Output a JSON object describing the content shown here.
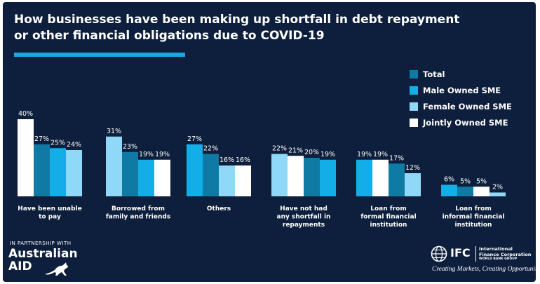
{
  "title": {
    "line1": "How businesses have been making up shortfall in debt repayment",
    "line2": "or other financial obligations due to COVID-19"
  },
  "colors": {
    "background": "#0d1f3c",
    "accent": "#1aa7e0",
    "total": "#0f7aa3",
    "male": "#13aee8",
    "female": "#8fd8f7",
    "jointly": "#ffffff"
  },
  "chart_data": {
    "type": "bar",
    "categories": [
      [
        "Have been unable",
        "to pay"
      ],
      [
        "Borrowed from",
        "family and friends"
      ],
      [
        "Others"
      ],
      [
        "Have not had",
        "any shortfall in",
        "repayments"
      ],
      [
        "Loan from",
        "formal financial",
        "institution"
      ],
      [
        "Loan from",
        "informal financial",
        "institution"
      ]
    ],
    "category_labels": [
      "Have been unable to pay",
      "Borrowed from family and friends",
      "Others",
      "Have not had any shortfall in repayments",
      "Loan from formal financial institution",
      "Loan from informal financial institution"
    ],
    "groups": [
      [
        {
          "series": "Jointly Owned SME",
          "value": 40
        },
        {
          "series": "Total",
          "value": 27
        },
        {
          "series": "Male Owned SME",
          "value": 25
        },
        {
          "series": "Female Owned SME",
          "value": 24
        }
      ],
      [
        {
          "series": "Female Owned SME",
          "value": 31
        },
        {
          "series": "Total",
          "value": 23
        },
        {
          "series": "Male Owned SME",
          "value": 19
        },
        {
          "series": "Jointly Owned SME",
          "value": 19
        }
      ],
      [
        {
          "series": "Male Owned SME",
          "value": 27
        },
        {
          "series": "Total",
          "value": 22
        },
        {
          "series": "Female Owned SME",
          "value": 16
        },
        {
          "series": "Jointly Owned SME",
          "value": 16
        }
      ],
      [
        {
          "series": "Female Owned SME",
          "value": 22
        },
        {
          "series": "Jointly Owned SME",
          "value": 21
        },
        {
          "series": "Total",
          "value": 20
        },
        {
          "series": "Male Owned SME",
          "value": 19
        }
      ],
      [
        {
          "series": "Male Owned SME",
          "value": 19
        },
        {
          "series": "Jointly Owned SME",
          "value": 19
        },
        {
          "series": "Total",
          "value": 17
        },
        {
          "series": "Female Owned SME",
          "value": 12
        }
      ],
      [
        {
          "series": "Male Owned SME",
          "value": 6
        },
        {
          "series": "Total",
          "value": 5
        },
        {
          "series": "Jointly Owned SME",
          "value": 5
        },
        {
          "series": "Female Owned SME",
          "value": 2
        }
      ]
    ],
    "series": [
      {
        "name": "Total",
        "values": [
          27,
          23,
          22,
          20,
          17,
          5
        ]
      },
      {
        "name": "Male Owned SME",
        "values": [
          25,
          19,
          27,
          19,
          19,
          6
        ]
      },
      {
        "name": "Female Owned SME",
        "values": [
          24,
          31,
          16,
          22,
          12,
          2
        ]
      },
      {
        "name": "Jointly Owned SME",
        "values": [
          40,
          19,
          16,
          21,
          19,
          5
        ]
      }
    ],
    "value_suffix": "%",
    "ylim": [
      0,
      40
    ],
    "grid": false,
    "legend_position": "top-right",
    "legend": [
      "Total",
      "Male Owned SME",
      "Female Owned SME",
      "Jointly Owned SME"
    ]
  },
  "footer": {
    "partner_text": "IN PARTNERSHIP WITH",
    "aid_line1": "Australian",
    "aid_line2": "AID",
    "ifc_short": "IFC",
    "ifc_name_line1": "International",
    "ifc_name_line2": "Finance Corporation",
    "ifc_group": "WORLD BANK GROUP",
    "tagline": "Creating Markets, Creating Opportunities"
  },
  "icons": {
    "aid_logo": "kangaroo-icon",
    "ifc_logo": "globe-icon"
  }
}
